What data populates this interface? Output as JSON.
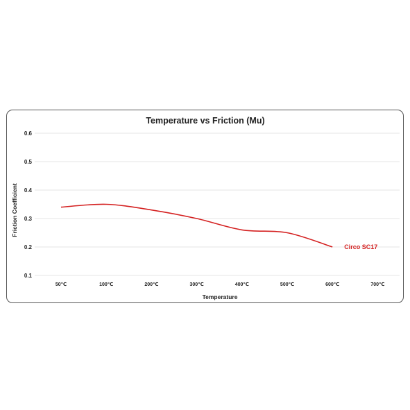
{
  "chart_data": {
    "type": "line",
    "title": "Temperature vs Friction (Mu)",
    "xlabel": "Temperature",
    "ylabel": "Friction Coefficient",
    "categories": [
      "50℃",
      "100℃",
      "200℃",
      "300℃",
      "400℃",
      "500℃",
      "600℃",
      "700℃"
    ],
    "ylim": [
      0.1,
      0.6
    ],
    "yticks": [
      "0.1",
      "0.2",
      "0.3",
      "0.4",
      "0.5",
      "0.6"
    ],
    "grid": true,
    "series": [
      {
        "name": "Circo SC17",
        "color": "#d42020",
        "values": [
          0.34,
          0.35,
          0.33,
          0.3,
          0.26,
          0.25,
          0.2,
          null
        ]
      }
    ]
  }
}
